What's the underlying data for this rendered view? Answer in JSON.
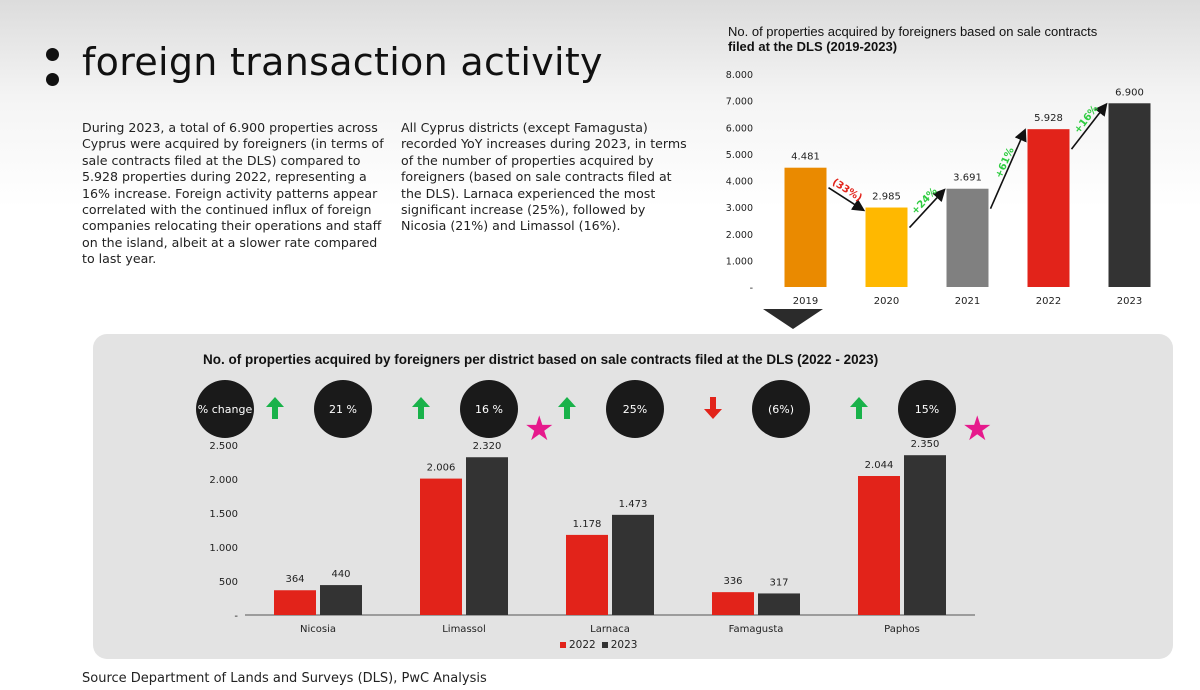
{
  "page": {
    "title": "foreign transaction activity",
    "para1": "During 2023, a total of 6.900 properties across Cyprus were acquired by foreigners (in terms of sale contracts filed at the DLS) compared to 5.928 properties during 2022, representing a 16% increase. Foreign activity patterns appear correlated with the continued influx of foreign companies relocating their operations and staff on the island, albeit at a slower rate compared to last year.",
    "para2": "All Cyprus districts (except Famagusta) recorded YoY increases during 2023, in terms of the number of properties acquired by foreigners (based on sale contracts filed at the DLS). Larnaca experienced the most significant increase (25%), followed by Nicosia (21%) and Limassol (16%).",
    "source": "Source Department of Lands and Surveys (DLS), PwC Analysis"
  },
  "chart_data": [
    {
      "type": "bar",
      "title_line1": "No. of properties acquired by foreigners based on sale contracts",
      "title_line2": "filed at the DLS (2019-2023)",
      "categories": [
        "2019",
        "2020",
        "2021",
        "2022",
        "2023"
      ],
      "values": [
        4481,
        2985,
        3691,
        5928,
        6900
      ],
      "value_labels": [
        "4.481",
        "2.985",
        "3.691",
        "5.928",
        "6.900"
      ],
      "colors": [
        "#ea8a00",
        "#ffb800",
        "#808080",
        "#e2231a",
        "#333333"
      ],
      "ylim": [
        0,
        8000
      ],
      "yticks": [
        1000,
        2000,
        3000,
        4000,
        5000,
        6000,
        7000,
        8000
      ],
      "ytick_labels": [
        "1.000",
        "2.000",
        "3.000",
        "4.000",
        "5.000",
        "6.000",
        "7.000",
        "8.000"
      ],
      "zero_label": "-",
      "changes": [
        {
          "label": "(33%)",
          "color": "#e2231a"
        },
        {
          "label": "+24%",
          "color": "#2ecc40"
        },
        {
          "label": "+61%",
          "color": "#2ecc40"
        },
        {
          "label": "+16%",
          "color": "#2ecc40"
        }
      ]
    },
    {
      "type": "bar",
      "title": "No. of properties acquired by foreigners per district based on sale contracts filed at the DLS (2022 - 2023)",
      "categories": [
        "Nicosia",
        "Limassol",
        "Larnaca",
        "Famagusta",
        "Paphos"
      ],
      "series": [
        {
          "name": "2022",
          "color": "#e2231a",
          "values": [
            364,
            2006,
            1178,
            336,
            2044
          ],
          "labels": [
            "364",
            "2.006",
            "1.178",
            "336",
            "2.044"
          ]
        },
        {
          "name": "2023",
          "color": "#333333",
          "values": [
            440,
            2320,
            1473,
            317,
            2350
          ],
          "labels": [
            "440",
            "2.320",
            "1.473",
            "317",
            "2.350"
          ]
        }
      ],
      "ylim": [
        0,
        2500
      ],
      "yticks": [
        500,
        1000,
        1500,
        2000,
        2500
      ],
      "ytick_labels": [
        "500",
        "1.000",
        "1.500",
        "2.000",
        "2.500"
      ],
      "zero_label": "-",
      "pct_header": "% change",
      "pct_change": [
        {
          "label": "21 %",
          "direction": "up"
        },
        {
          "label": "16 %",
          "direction": "up"
        },
        {
          "label": "25%",
          "direction": "up"
        },
        {
          "label": "(6%)",
          "direction": "down"
        },
        {
          "label": "15%",
          "direction": "up"
        }
      ],
      "starred": [
        "Limassol",
        "Paphos"
      ],
      "legend": "bottom-center"
    }
  ]
}
